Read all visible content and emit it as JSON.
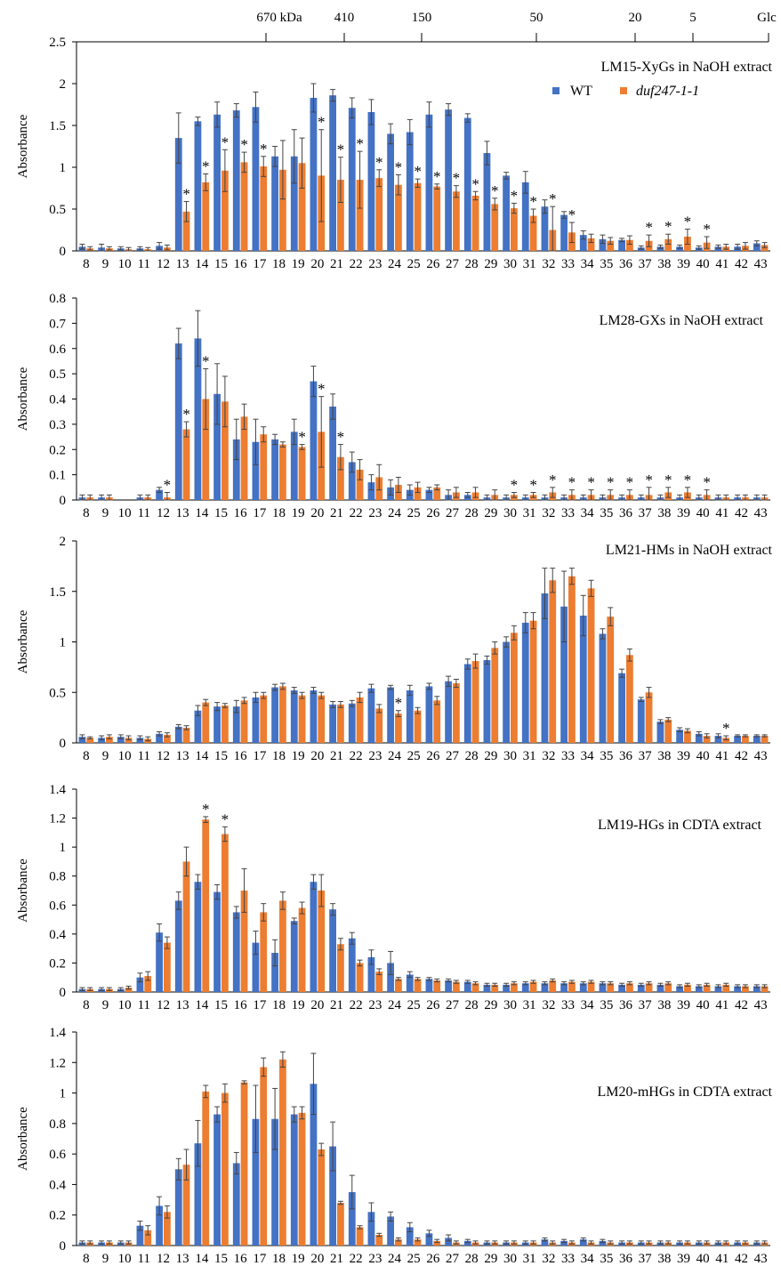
{
  "mw_axis": {
    "labels": [
      "670 kDa",
      "410",
      "150",
      "50",
      "20",
      "5",
      "Glc"
    ]
  },
  "legend": {
    "wt_label": "WT",
    "mutant_label": "duf247-1-1",
    "wt_color": "#4472C4",
    "mutant_color": "#ED7D31"
  },
  "chart_data": [
    {
      "type": "bar",
      "title": "LM15-XyGs in NaOH extract",
      "ylabel": "Absorbance",
      "ylim": [
        0,
        2.5
      ],
      "yticks": [
        "0",
        "0.5",
        "1",
        "1.5",
        "2",
        "2.5"
      ],
      "categories": [
        "8",
        "9",
        "10",
        "11",
        "12",
        "13",
        "14",
        "15",
        "16",
        "17",
        "18",
        "19",
        "20",
        "21",
        "22",
        "23",
        "24",
        "25",
        "26",
        "27",
        "28",
        "29",
        "30",
        "31",
        "32",
        "33",
        "34",
        "35",
        "36",
        "37",
        "38",
        "39",
        "40",
        "41",
        "42",
        "43"
      ],
      "series": [
        {
          "name": "WT",
          "color": "#4472C4",
          "values": [
            0.05,
            0.04,
            0.03,
            0.03,
            0.06,
            1.35,
            1.55,
            1.63,
            1.68,
            1.72,
            1.13,
            1.13,
            1.83,
            1.86,
            1.71,
            1.66,
            1.4,
            1.42,
            1.63,
            1.69,
            1.59,
            1.17,
            0.9,
            0.82,
            0.53,
            0.43,
            0.19,
            0.14,
            0.13,
            0.04,
            0.05,
            0.05,
            0.04,
            0.05,
            0.05,
            0.09
          ],
          "errors": [
            0.03,
            0.04,
            0.02,
            0.02,
            0.04,
            0.3,
            0.05,
            0.15,
            0.08,
            0.18,
            0.12,
            0.32,
            0.17,
            0.07,
            0.12,
            0.15,
            0.12,
            0.15,
            0.15,
            0.07,
            0.05,
            0.14,
            0.04,
            0.13,
            0.08,
            0.04,
            0.05,
            0.05,
            0.02,
            0.02,
            0.02,
            0.02,
            0.02,
            0.02,
            0.03,
            0.03
          ]
        },
        {
          "name": "duf247-1-1",
          "color": "#ED7D31",
          "values": [
            0.03,
            0.03,
            0.02,
            0.02,
            0.04,
            0.47,
            0.82,
            0.96,
            1.06,
            1.01,
            0.97,
            1.05,
            0.9,
            0.85,
            0.85,
            0.87,
            0.79,
            0.81,
            0.77,
            0.71,
            0.66,
            0.56,
            0.51,
            0.42,
            0.25,
            0.22,
            0.15,
            0.12,
            0.13,
            0.12,
            0.14,
            0.17,
            0.1,
            0.05,
            0.06,
            0.07
          ],
          "errors": [
            0.02,
            0.02,
            0.02,
            0.02,
            0.03,
            0.12,
            0.1,
            0.25,
            0.12,
            0.12,
            0.35,
            0.3,
            0.55,
            0.27,
            0.34,
            0.1,
            0.12,
            0.05,
            0.03,
            0.07,
            0.05,
            0.07,
            0.06,
            0.08,
            0.28,
            0.12,
            0.05,
            0.04,
            0.05,
            0.07,
            0.06,
            0.09,
            0.07,
            0.03,
            0.04,
            0.03
          ]
        }
      ],
      "significant": [
        "13",
        "14",
        "15",
        "16",
        "17",
        "20",
        "21",
        "22",
        "23",
        "24",
        "25",
        "26",
        "27",
        "28",
        "29",
        "30",
        "31",
        "32",
        "33",
        "37",
        "38",
        "39",
        "40"
      ]
    },
    {
      "type": "bar",
      "title": "LM28-GXs in NaOH extract",
      "ylabel": "Absorbance",
      "ylim": [
        0,
        0.8
      ],
      "yticks": [
        "0",
        "0.1",
        "0.2",
        "0.3",
        "0.4",
        "0.5",
        "0.6",
        "0.7",
        "0.8"
      ],
      "categories": [
        "8",
        "9",
        "10",
        "11",
        "12",
        "13",
        "14",
        "15",
        "16",
        "17",
        "18",
        "19",
        "20",
        "21",
        "22",
        "23",
        "24",
        "25",
        "26",
        "27",
        "28",
        "29",
        "30",
        "31",
        "32",
        "33",
        "34",
        "35",
        "36",
        "37",
        "38",
        "39",
        "40",
        "41",
        "42",
        "43"
      ],
      "series": [
        {
          "name": "WT",
          "color": "#4472C4",
          "values": [
            0.01,
            0.01,
            0.0,
            0.01,
            0.04,
            0.62,
            0.64,
            0.42,
            0.24,
            0.23,
            0.24,
            0.27,
            0.47,
            0.37,
            0.15,
            0.07,
            0.05,
            0.04,
            0.04,
            0.02,
            0.02,
            0.01,
            0.01,
            0.01,
            0.01,
            0.01,
            0.01,
            0.01,
            0.01,
            0.01,
            0.01,
            0.01,
            0.01,
            0.01,
            0.01,
            0.01
          ],
          "errors": [
            0.01,
            0.01,
            0.0,
            0.01,
            0.01,
            0.06,
            0.11,
            0.12,
            0.08,
            0.09,
            0.02,
            0.05,
            0.06,
            0.05,
            0.04,
            0.03,
            0.03,
            0.02,
            0.01,
            0.02,
            0.01,
            0.01,
            0.01,
            0.01,
            0.01,
            0.01,
            0.01,
            0.01,
            0.01,
            0.01,
            0.01,
            0.01,
            0.01,
            0.01,
            0.01,
            0.01
          ]
        },
        {
          "name": "duf247-1-1",
          "color": "#ED7D31",
          "values": [
            0.01,
            0.01,
            0.0,
            0.01,
            0.01,
            0.28,
            0.4,
            0.39,
            0.33,
            0.26,
            0.22,
            0.21,
            0.27,
            0.17,
            0.12,
            0.09,
            0.06,
            0.05,
            0.05,
            0.03,
            0.03,
            0.02,
            0.02,
            0.02,
            0.03,
            0.02,
            0.02,
            0.02,
            0.02,
            0.02,
            0.03,
            0.03,
            0.02,
            0.01,
            0.01,
            0.01
          ],
          "errors": [
            0.01,
            0.01,
            0.0,
            0.01,
            0.02,
            0.03,
            0.12,
            0.1,
            0.05,
            0.03,
            0.01,
            0.01,
            0.14,
            0.05,
            0.04,
            0.05,
            0.03,
            0.02,
            0.01,
            0.02,
            0.02,
            0.02,
            0.01,
            0.01,
            0.02,
            0.02,
            0.02,
            0.02,
            0.02,
            0.03,
            0.02,
            0.02,
            0.02,
            0.01,
            0.01,
            0.01
          ]
        }
      ],
      "significant": [
        "12",
        "13",
        "14",
        "19",
        "20",
        "21",
        "30",
        "31",
        "32",
        "33",
        "34",
        "35",
        "36",
        "37",
        "38",
        "39",
        "40"
      ]
    },
    {
      "type": "bar",
      "title": "LM21-HMs in NaOH extract",
      "ylabel": "Absorbance",
      "ylim": [
        0,
        2
      ],
      "yticks": [
        "0",
        "0.5",
        "1",
        "1.5",
        "2"
      ],
      "categories": [
        "8",
        "9",
        "10",
        "11",
        "12",
        "13",
        "14",
        "15",
        "16",
        "17",
        "18",
        "19",
        "20",
        "21",
        "22",
        "23",
        "24",
        "25",
        "26",
        "27",
        "28",
        "29",
        "30",
        "31",
        "32",
        "33",
        "34",
        "35",
        "36",
        "37",
        "38",
        "39",
        "40",
        "41",
        "42",
        "43"
      ],
      "series": [
        {
          "name": "WT",
          "color": "#4472C4",
          "values": [
            0.06,
            0.05,
            0.06,
            0.05,
            0.09,
            0.16,
            0.32,
            0.36,
            0.36,
            0.45,
            0.55,
            0.52,
            0.52,
            0.38,
            0.39,
            0.54,
            0.55,
            0.52,
            0.56,
            0.61,
            0.78,
            0.82,
            1.0,
            1.19,
            1.48,
            1.35,
            1.26,
            1.08,
            0.69,
            0.43,
            0.21,
            0.13,
            0.09,
            0.07,
            0.07,
            0.07
          ],
          "errors": [
            0.02,
            0.02,
            0.02,
            0.02,
            0.02,
            0.02,
            0.05,
            0.04,
            0.06,
            0.05,
            0.03,
            0.03,
            0.03,
            0.03,
            0.03,
            0.04,
            0.02,
            0.05,
            0.03,
            0.05,
            0.05,
            0.04,
            0.05,
            0.1,
            0.25,
            0.35,
            0.2,
            0.05,
            0.04,
            0.02,
            0.02,
            0.02,
            0.02,
            0.02,
            0.01,
            0.01
          ]
        },
        {
          "name": "duf247-1-1",
          "color": "#ED7D31",
          "values": [
            0.05,
            0.06,
            0.05,
            0.04,
            0.08,
            0.15,
            0.4,
            0.37,
            0.42,
            0.47,
            0.56,
            0.47,
            0.47,
            0.38,
            0.45,
            0.34,
            0.29,
            0.32,
            0.42,
            0.59,
            0.81,
            0.94,
            1.09,
            1.21,
            1.61,
            1.65,
            1.53,
            1.25,
            0.87,
            0.5,
            0.23,
            0.12,
            0.07,
            0.05,
            0.07,
            0.07
          ],
          "errors": [
            0.01,
            0.02,
            0.02,
            0.02,
            0.02,
            0.02,
            0.03,
            0.02,
            0.03,
            0.03,
            0.03,
            0.03,
            0.03,
            0.03,
            0.05,
            0.04,
            0.03,
            0.03,
            0.04,
            0.04,
            0.07,
            0.06,
            0.07,
            0.08,
            0.12,
            0.08,
            0.08,
            0.09,
            0.06,
            0.05,
            0.02,
            0.02,
            0.02,
            0.02,
            0.01,
            0.01
          ]
        }
      ],
      "significant": [
        "24",
        "41"
      ]
    },
    {
      "type": "bar",
      "title": "LM19-HGs in CDTA extract",
      "ylabel": "Absorbance",
      "ylim": [
        0,
        1.4
      ],
      "yticks": [
        "0",
        "0.2",
        "0.4",
        "0.6",
        "0.8",
        "1",
        "1.2",
        "1.4"
      ],
      "categories": [
        "8",
        "9",
        "10",
        "11",
        "12",
        "13",
        "14",
        "15",
        "16",
        "17",
        "18",
        "19",
        "20",
        "21",
        "22",
        "23",
        "24",
        "25",
        "26",
        "27",
        "28",
        "29",
        "30",
        "31",
        "32",
        "33",
        "34",
        "35",
        "36",
        "37",
        "38",
        "39",
        "40",
        "41",
        "42",
        "43"
      ],
      "series": [
        {
          "name": "WT",
          "color": "#4472C4",
          "values": [
            0.02,
            0.02,
            0.02,
            0.1,
            0.41,
            0.63,
            0.76,
            0.69,
            0.55,
            0.34,
            0.27,
            0.49,
            0.76,
            0.57,
            0.37,
            0.24,
            0.2,
            0.12,
            0.09,
            0.08,
            0.07,
            0.05,
            0.05,
            0.06,
            0.06,
            0.06,
            0.06,
            0.06,
            0.05,
            0.05,
            0.05,
            0.04,
            0.04,
            0.04,
            0.04,
            0.04
          ],
          "errors": [
            0.01,
            0.01,
            0.01,
            0.03,
            0.06,
            0.06,
            0.05,
            0.05,
            0.04,
            0.08,
            0.09,
            0.02,
            0.05,
            0.04,
            0.04,
            0.05,
            0.08,
            0.02,
            0.01,
            0.01,
            0.01,
            0.01,
            0.01,
            0.01,
            0.01,
            0.01,
            0.01,
            0.01,
            0.01,
            0.01,
            0.01,
            0.01,
            0.01,
            0.01,
            0.01,
            0.01
          ]
        },
        {
          "name": "duf247-1-1",
          "color": "#ED7D31",
          "values": [
            0.02,
            0.02,
            0.03,
            0.11,
            0.34,
            0.9,
            1.19,
            1.09,
            0.7,
            0.55,
            0.63,
            0.58,
            0.7,
            0.33,
            0.2,
            0.14,
            0.09,
            0.09,
            0.08,
            0.07,
            0.06,
            0.05,
            0.06,
            0.07,
            0.08,
            0.07,
            0.07,
            0.06,
            0.06,
            0.06,
            0.06,
            0.05,
            0.05,
            0.05,
            0.04,
            0.04
          ],
          "errors": [
            0.01,
            0.01,
            0.01,
            0.03,
            0.04,
            0.1,
            0.02,
            0.05,
            0.15,
            0.06,
            0.06,
            0.04,
            0.11,
            0.04,
            0.02,
            0.02,
            0.01,
            0.01,
            0.01,
            0.01,
            0.01,
            0.01,
            0.01,
            0.01,
            0.01,
            0.01,
            0.01,
            0.01,
            0.01,
            0.01,
            0.01,
            0.01,
            0.01,
            0.01,
            0.01,
            0.01
          ]
        }
      ],
      "significant": [
        "14",
        "15"
      ]
    },
    {
      "type": "bar",
      "title": "LM20-mHGs in CDTA extract",
      "ylabel": "Absorbance",
      "ylim": [
        0,
        1.4
      ],
      "yticks": [
        "0",
        "0.2",
        "0.4",
        "0.6",
        "0.8",
        "1",
        "1.2",
        "1.4"
      ],
      "categories": [
        "8",
        "9",
        "10",
        "11",
        "12",
        "13",
        "14",
        "15",
        "16",
        "17",
        "18",
        "19",
        "20",
        "21",
        "22",
        "23",
        "24",
        "25",
        "26",
        "27",
        "28",
        "29",
        "30",
        "31",
        "32",
        "33",
        "34",
        "35",
        "36",
        "37",
        "38",
        "39",
        "40",
        "41",
        "42",
        "43"
      ],
      "series": [
        {
          "name": "WT",
          "color": "#4472C4",
          "values": [
            0.02,
            0.02,
            0.02,
            0.13,
            0.26,
            0.5,
            0.67,
            0.86,
            0.54,
            0.83,
            0.83,
            0.86,
            1.06,
            0.65,
            0.35,
            0.22,
            0.19,
            0.12,
            0.08,
            0.05,
            0.03,
            0.02,
            0.02,
            0.02,
            0.04,
            0.03,
            0.04,
            0.03,
            0.02,
            0.02,
            0.02,
            0.02,
            0.02,
            0.02,
            0.02,
            0.02
          ],
          "errors": [
            0.01,
            0.01,
            0.01,
            0.03,
            0.06,
            0.07,
            0.15,
            0.05,
            0.07,
            0.22,
            0.2,
            0.05,
            0.2,
            0.16,
            0.11,
            0.06,
            0.03,
            0.03,
            0.02,
            0.02,
            0.01,
            0.01,
            0.01,
            0.01,
            0.01,
            0.01,
            0.01,
            0.01,
            0.01,
            0.01,
            0.01,
            0.01,
            0.01,
            0.01,
            0.01,
            0.01
          ]
        },
        {
          "name": "duf247-1-1",
          "color": "#ED7D31",
          "values": [
            0.02,
            0.02,
            0.02,
            0.1,
            0.22,
            0.53,
            1.01,
            1.0,
            1.07,
            1.17,
            1.22,
            0.87,
            0.63,
            0.28,
            0.12,
            0.07,
            0.04,
            0.04,
            0.03,
            0.02,
            0.02,
            0.02,
            0.02,
            0.02,
            0.02,
            0.02,
            0.02,
            0.02,
            0.02,
            0.02,
            0.02,
            0.02,
            0.02,
            0.02,
            0.02,
            0.02
          ],
          "errors": [
            0.01,
            0.01,
            0.01,
            0.03,
            0.04,
            0.1,
            0.04,
            0.06,
            0.01,
            0.06,
            0.05,
            0.04,
            0.04,
            0.01,
            0.01,
            0.01,
            0.01,
            0.01,
            0.01,
            0.01,
            0.01,
            0.01,
            0.01,
            0.01,
            0.01,
            0.01,
            0.01,
            0.01,
            0.01,
            0.01,
            0.01,
            0.01,
            0.01,
            0.01,
            0.01,
            0.01
          ]
        }
      ],
      "significant": []
    }
  ]
}
